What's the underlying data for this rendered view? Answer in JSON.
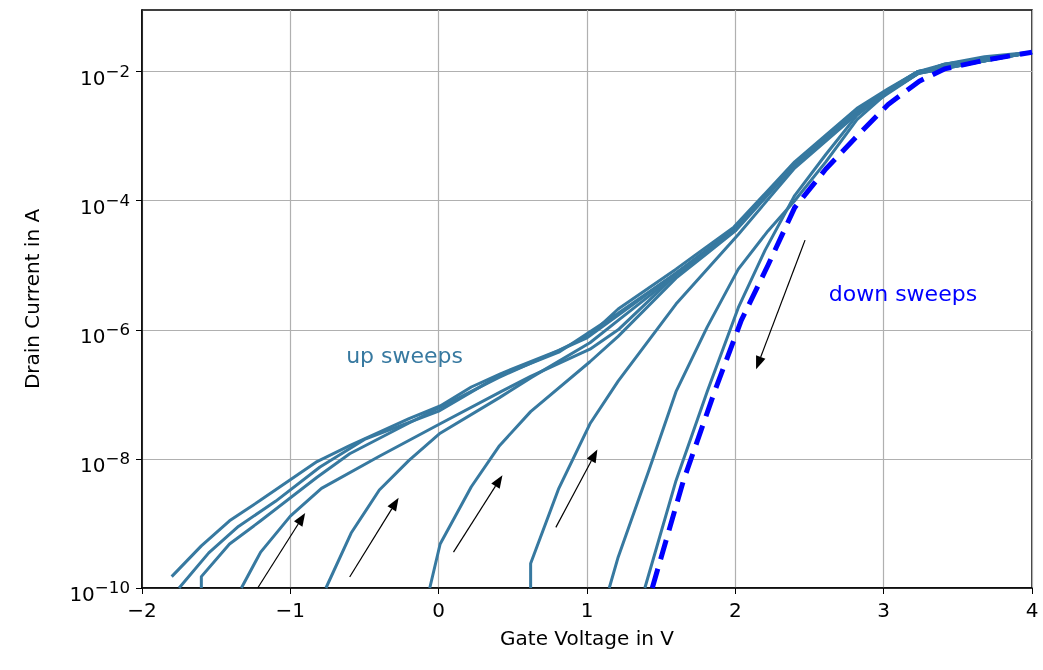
{
  "chart_data": {
    "type": "line",
    "xlabel": "Gate Voltage in V",
    "ylabel": "Drain Current in A",
    "log": "y",
    "grid": true,
    "line_style": "solid",
    "xlim": [
      -2,
      4
    ],
    "xticks": [
      {
        "value": -2,
        "label": "−2"
      },
      {
        "value": -1,
        "label": "−1"
      },
      0,
      1,
      2,
      3,
      4
    ],
    "ylim": [
      1e-10,
      0.09
    ],
    "yticks": [
      {
        "value": 1e-10,
        "label": "10$^{−10}$"
      },
      {
        "value": 1e-08,
        "label": "10$^{−8}$"
      },
      {
        "value": 1e-06,
        "label": "10$^{−6}$"
      },
      {
        "value": 0.0001,
        "label": "10$^{−4}$"
      },
      {
        "value": 0.01,
        "label": "10$^{−2}$"
      }
    ],
    "annotations": [
      "up sweeps",
      "down sweeps"
    ],
    "series": [
      {
        "color": "#3779a0",
        "x": [
          -1.8,
          -1.6,
          -1.41,
          -1.2,
          -0.82,
          -0.6,
          -0.2,
          0.01,
          0.22,
          0.42,
          0.81,
          1.02,
          1.21,
          1.6,
          1.99,
          2.4,
          2.82,
          3.03,
          3.23,
          3.41,
          3.68,
          4.0
        ],
        "values": [
          1.5e-10,
          4.5e-10,
          1.1e-09,
          2.3e-09,
          9.1e-09,
          1.6e-08,
          4.2e-08,
          6.6e-08,
          1.3e-07,
          2.1e-07,
          4.8e-07,
          8.3e-07,
          2.1e-06,
          8.7e-06,
          3.9e-05,
          0.0004,
          0.0027,
          0.0054,
          0.01,
          0.013,
          0.017,
          0.02
        ]
      },
      {
        "color": "#3779a0",
        "x": [
          -1.75,
          -1.55,
          -1.35,
          -1.1,
          -0.8,
          -0.5,
          0,
          0.4,
          0.81,
          1.21,
          1.6,
          1.99,
          2.4,
          2.82,
          3.23,
          4.0
        ],
        "values": [
          1e-10,
          3.5e-10,
          9e-10,
          2.2e-09,
          7.5e-09,
          2e-08,
          5.5e-08,
          1.9e-07,
          4.5e-07,
          1.8e-06,
          7.5e-06,
          3.6e-05,
          0.00038,
          0.0026,
          0.01,
          0.02
        ]
      },
      {
        "color": "#3779a0",
        "x": [
          -1.6,
          -1.6,
          -1.41,
          -1.2,
          -0.82,
          -0.6,
          -0.2,
          0.4,
          1.0,
          1.6,
          2.0,
          2.4,
          2.82,
          3.23,
          4.0
        ],
        "values": [
          1e-10,
          1.5e-10,
          4.8e-10,
          1.1e-09,
          5.2e-09,
          1.2e-08,
          3.6e-08,
          1.8e-07,
          7.5e-07,
          7.5e-06,
          3.6e-05,
          0.00038,
          0.0026,
          0.01,
          0.02
        ]
      },
      {
        "color": "#3779a0",
        "x": [
          -1.33,
          -1.2,
          -1.0,
          -0.79,
          -0.4,
          0.01,
          0.42,
          0.62,
          1.02,
          1.21,
          1.6,
          2.0,
          2.4,
          2.82,
          3.23,
          4.0
        ],
        "values": [
          1e-10,
          3.6e-10,
          1.3e-09,
          3.5e-09,
          1.1e-08,
          3.5e-08,
          1.1e-07,
          1.9e-07,
          5e-07,
          1e-06,
          7.1e-06,
          3.5e-05,
          0.00038,
          0.0025,
          0.0095,
          0.02
        ]
      },
      {
        "color": "#3779a0",
        "x": [
          -0.76,
          -0.59,
          -0.4,
          -0.2,
          0.01,
          0.41,
          0.62,
          1.02,
          1.21,
          1.6,
          2.0,
          2.4,
          2.82,
          3.23,
          4.0
        ],
        "values": [
          1e-10,
          7.1e-10,
          3.3e-09,
          9.5e-09,
          2.5e-08,
          8.9e-08,
          1.8e-07,
          6.3e-07,
          1.4e-06,
          7.1e-06,
          3.5e-05,
          0.00038,
          0.0025,
          0.0095,
          0.02
        ]
      },
      {
        "color": "#3779a0",
        "x": [
          -0.06,
          0.01,
          0.22,
          0.41,
          0.62,
          1.02,
          1.21,
          1.6,
          2.0,
          2.4,
          2.82,
          3.23,
          4.0
        ],
        "values": [
          1e-10,
          4.8e-10,
          3.7e-09,
          1.6e-08,
          5.4e-08,
          3.2e-07,
          7.9e-07,
          6.3e-06,
          3.4e-05,
          0.00035,
          0.0024,
          0.0093,
          0.02
        ]
      },
      {
        "color": "#3779a0",
        "x": [
          0.62,
          0.62,
          0.81,
          1.02,
          1.21,
          1.6,
          2.02,
          2.4,
          2.82,
          3.23,
          4.0
        ],
        "values": [
          1e-10,
          2.4e-10,
          3.5e-09,
          3.5e-08,
          1.6e-07,
          2.5e-06,
          3e-05,
          0.00032,
          0.0022,
          0.0093,
          0.02
        ]
      },
      {
        "color": "#3779a0",
        "x": [
          1.15,
          1.21,
          1.42,
          1.6,
          1.81,
          2.02,
          2.22,
          2.4,
          2.61,
          2.82,
          3.03,
          3.23,
          3.41,
          4.0
        ],
        "values": [
          1e-10,
          3e-10,
          6.9e-09,
          1.1e-07,
          1.1e-06,
          8.7e-06,
          3.4e-05,
          0.0001,
          0.0004,
          0.0018,
          0.0048,
          0.0093,
          0.013,
          0.02
        ]
      },
      {
        "color": "#3779a0",
        "x": [
          1.39,
          1.6,
          1.81,
          2.02,
          2.2,
          2.4,
          2.61,
          2.82,
          3.03,
          3.23,
          3.41,
          4.0
        ],
        "values": [
          1e-10,
          4.6e-09,
          1.1e-07,
          2.2e-06,
          1.7e-05,
          0.00012,
          0.00052,
          0.0021,
          0.0051,
          0.0093,
          0.013,
          0.02
        ]
      },
      {
        "color": "#0000ff",
        "line_style": "dashed",
        "x": [
          1.44,
          1.65,
          1.86,
          2.04,
          2.22,
          2.4,
          2.61,
          2.82,
          3.03,
          3.24,
          3.41,
          3.68,
          4.0
        ],
        "values": [
          1e-10,
          4.6e-09,
          1.1e-07,
          1.4e-06,
          1e-05,
          7.8e-05,
          0.00031,
          0.001,
          0.0031,
          0.0071,
          0.011,
          0.015,
          0.02
        ]
      }
    ]
  }
}
